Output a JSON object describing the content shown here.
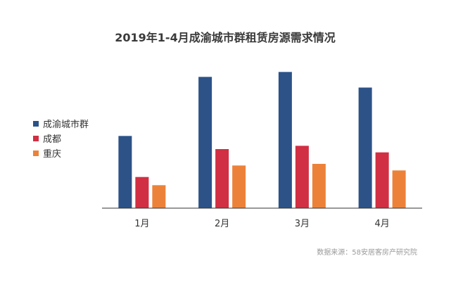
{
  "chart_data": {
    "type": "bar",
    "title": "2019年1-4月成渝城市群租赁房源需求情况",
    "categories": [
      "1月",
      "2月",
      "3月",
      "4月"
    ],
    "series": [
      {
        "name": "成渝城市群",
        "values": [
          88,
          160,
          166,
          147
        ],
        "color": "#2c5288"
      },
      {
        "name": "成都",
        "values": [
          38,
          72,
          76,
          68
        ],
        "color": "#d12f43"
      },
      {
        "name": "重庆",
        "values": [
          28,
          52,
          54,
          46
        ],
        "color": "#ec8239"
      }
    ],
    "ylim": [
      0,
      180
    ],
    "grid": false,
    "legend_position": "left",
    "source": "数据来源：58安居客房产研究院"
  }
}
